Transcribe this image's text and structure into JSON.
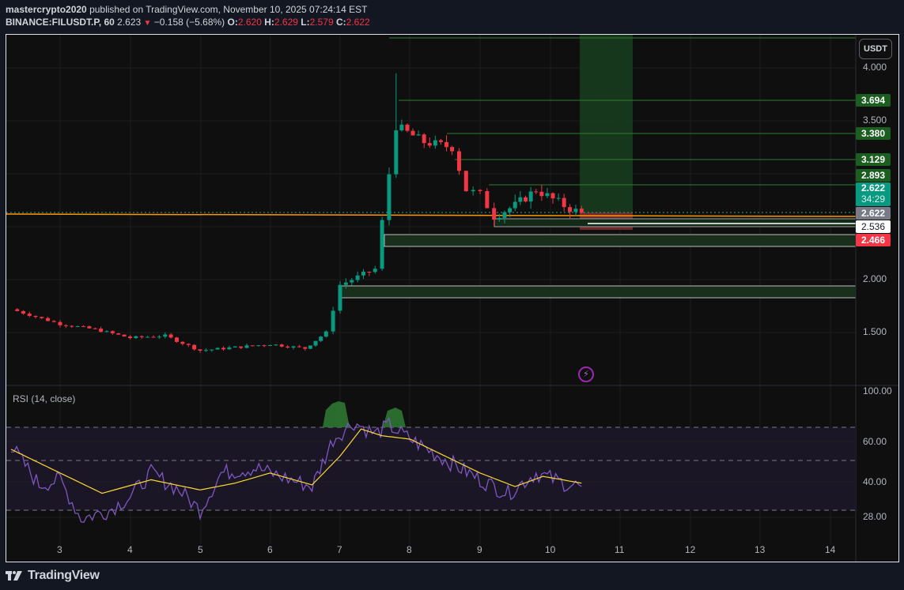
{
  "header": {
    "author": "mastercrypto2020",
    "published_text": "published on TradingView.com, November 10, 2025 07:24:14 EST",
    "symbol": "BINANCE:FILUSDT.P, 60",
    "last": "2.623",
    "change_icon": "triangle-down-icon",
    "change": "−0.158 (−5.68%)",
    "o_label": "O:",
    "o": "2.620",
    "h_label": "H:",
    "h": "2.629",
    "l_label": "L:",
    "l": "2.579",
    "c_label": "C:",
    "c": "2.622"
  },
  "price_axis": {
    "currency_button": "USDT",
    "ticks": [
      "4.000",
      "3.500",
      "2.000",
      "1.500"
    ],
    "labels": [
      {
        "value": "3.694",
        "bg": "#1b5e20",
        "color": "#ffffff"
      },
      {
        "value": "3.380",
        "bg": "#1b5e20",
        "color": "#ffffff"
      },
      {
        "value": "3.129",
        "bg": "#1b5e20",
        "color": "#ffffff"
      },
      {
        "value": "2.893",
        "bg": "#1b5e20",
        "color": "#ffffff"
      },
      {
        "value": "2.622",
        "countdown": "34:29",
        "bg": "#089981",
        "color": "#ffffff"
      },
      {
        "value": "2.622",
        "bg": "#787b86",
        "color": "#ffffff"
      },
      {
        "value": "2.536",
        "bg": "#ffffff",
        "color": "#131722"
      },
      {
        "value": "2.466",
        "bg": "#f23645",
        "color": "#ffffff"
      }
    ]
  },
  "rsi": {
    "title": "RSI (14, close)",
    "ticks": [
      "100.00",
      "60.00",
      "40.00",
      "28.00"
    ]
  },
  "time_axis": {
    "ticks": [
      "3",
      "4",
      "5",
      "6",
      "7",
      "8",
      "9",
      "10",
      "11",
      "12",
      "13",
      "14"
    ]
  },
  "footer": {
    "brand": "TradingView",
    "logo_icon": "tradingview-logo-icon"
  },
  "colors": {
    "up": "#089981",
    "down": "#f23645",
    "rsi_line": "#7e57c2",
    "rsi_ma": "#fdd835",
    "orange_line": "#ff9800",
    "target_zone": "#1b3a1f",
    "stop_zone": "#7a2a32"
  },
  "chart_data": {
    "type": "candlestick",
    "title": "BINANCE:FILUSDT.P, 60",
    "xlabel": "",
    "ylabel": "USDT",
    "x_ticks": [
      "3",
      "4",
      "5",
      "6",
      "7",
      "8",
      "9",
      "10",
      "11",
      "12",
      "13",
      "14"
    ],
    "ylim": [
      1.2,
      4.3
    ],
    "y_ticks": [
      1.5,
      2.0,
      3.5,
      4.0
    ],
    "approx_price_path": [
      {
        "day": 2.3,
        "close": 1.72
      },
      {
        "day": 3.0,
        "close": 1.58
      },
      {
        "day": 3.5,
        "close": 1.53
      },
      {
        "day": 4.0,
        "close": 1.45
      },
      {
        "day": 4.5,
        "close": 1.47
      },
      {
        "day": 5.0,
        "close": 1.33
      },
      {
        "day": 5.5,
        "close": 1.36
      },
      {
        "day": 6.0,
        "close": 1.39
      },
      {
        "day": 6.5,
        "close": 1.35
      },
      {
        "day": 6.8,
        "close": 1.5
      },
      {
        "day": 7.0,
        "close": 1.95
      },
      {
        "day": 7.5,
        "close": 2.1
      },
      {
        "day": 7.7,
        "close": 3.0
      },
      {
        "day": 7.8,
        "close": 3.45,
        "high": 3.95
      },
      {
        "day": 8.2,
        "close": 3.3
      },
      {
        "day": 8.6,
        "close": 3.25
      },
      {
        "day": 8.8,
        "close": 2.85
      },
      {
        "day": 9.0,
        "close": 2.8
      },
      {
        "day": 9.2,
        "close": 2.6
      },
      {
        "day": 9.5,
        "close": 2.7
      },
      {
        "day": 9.8,
        "close": 2.85
      },
      {
        "day": 10.2,
        "close": 2.7
      },
      {
        "day": 10.45,
        "close": 2.622
      }
    ],
    "horizontal_levels": [
      3.694,
      3.38,
      3.129,
      2.893,
      2.622,
      2.536,
      2.466
    ],
    "zones": [
      {
        "type": "demand",
        "from": 2.33,
        "to": 2.44
      },
      {
        "type": "demand",
        "from": 1.82,
        "to": 1.93
      },
      {
        "type": "long_target",
        "from": 2.622,
        "to": 4.3
      },
      {
        "type": "long_stop",
        "from": 2.466,
        "to": 2.622
      }
    ],
    "indicator": {
      "name": "RSI (14, close)",
      "ylim": [
        20,
        100
      ],
      "bands": [
        70,
        50,
        30
      ],
      "approx_rsi": [
        {
          "day": 2.3,
          "rsi": 68
        },
        {
          "day": 2.7,
          "rsi": 45
        },
        {
          "day": 3.0,
          "rsi": 48
        },
        {
          "day": 3.3,
          "rsi": 25
        },
        {
          "day": 3.7,
          "rsi": 30
        },
        {
          "day": 4.0,
          "rsi": 38
        },
        {
          "day": 4.3,
          "rsi": 52
        },
        {
          "day": 4.7,
          "rsi": 42
        },
        {
          "day": 5.0,
          "rsi": 30
        },
        {
          "day": 5.3,
          "rsi": 52
        },
        {
          "day": 5.8,
          "rsi": 55
        },
        {
          "day": 6.0,
          "rsi": 52
        },
        {
          "day": 6.3,
          "rsi": 48
        },
        {
          "day": 6.6,
          "rsi": 44
        },
        {
          "day": 6.9,
          "rsi": 72
        },
        {
          "day": 7.2,
          "rsi": 82
        },
        {
          "day": 7.5,
          "rsi": 75
        },
        {
          "day": 7.7,
          "rsi": 80
        },
        {
          "day": 8.0,
          "rsi": 72
        },
        {
          "day": 8.5,
          "rsi": 60
        },
        {
          "day": 9.0,
          "rsi": 48
        },
        {
          "day": 9.4,
          "rsi": 40
        },
        {
          "day": 9.8,
          "rsi": 52
        },
        {
          "day": 10.2,
          "rsi": 46
        },
        {
          "day": 10.45,
          "rsi": 44
        }
      ],
      "approx_rsi_ma": [
        {
          "day": 2.3,
          "ma": 66
        },
        {
          "day": 3.0,
          "ma": 52
        },
        {
          "day": 3.6,
          "ma": 40
        },
        {
          "day": 4.3,
          "ma": 48
        },
        {
          "day": 5.0,
          "ma": 42
        },
        {
          "day": 5.5,
          "ma": 46
        },
        {
          "day": 6.0,
          "ma": 52
        },
        {
          "day": 6.6,
          "ma": 45
        },
        {
          "day": 7.0,
          "ma": 62
        },
        {
          "day": 7.3,
          "ma": 78
        },
        {
          "day": 7.6,
          "ma": 74
        },
        {
          "day": 8.0,
          "ma": 72
        },
        {
          "day": 8.5,
          "ma": 62
        },
        {
          "day": 9.0,
          "ma": 52
        },
        {
          "day": 9.5,
          "ma": 44
        },
        {
          "day": 9.9,
          "ma": 50
        },
        {
          "day": 10.45,
          "ma": 46
        }
      ]
    }
  }
}
